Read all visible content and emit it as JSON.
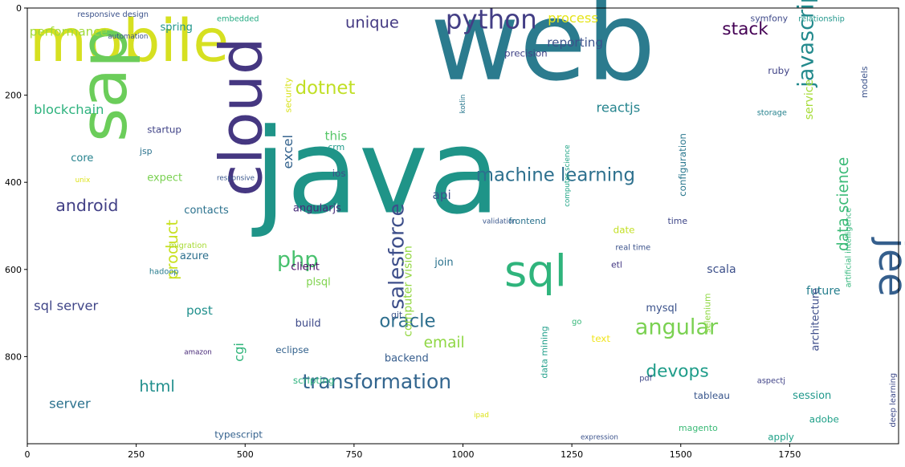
{
  "chart_data": {
    "type": "wordcloud",
    "xlim": [
      0,
      2000
    ],
    "ylim": [
      1000,
      0
    ],
    "x_ticks": [
      0,
      250,
      500,
      750,
      1000,
      1250,
      1500,
      1750
    ],
    "y_ticks": [
      0,
      200,
      400,
      600,
      800
    ],
    "grid": false,
    "colormap": "viridis",
    "words": [
      {
        "text": "web",
        "x": 925,
        "y": 95,
        "size": 250,
        "color": "#2b7b8e"
      },
      {
        "text": "java",
        "x": 520,
        "y": 395,
        "size": 270,
        "color": "#1f9488"
      },
      {
        "text": "mobile",
        "x": 5,
        "y": 85,
        "size": 135,
        "color": "#d6e021"
      },
      {
        "text": "sap",
        "x": 185,
        "y": 175,
        "size": 150,
        "color": "#6bcd5a",
        "rotate": -90
      },
      {
        "text": "cloud",
        "x": 500,
        "y": 250,
        "size": 135,
        "color": "#453781",
        "rotate": -90
      },
      {
        "text": "sql",
        "x": 1095,
        "y": 610,
        "size": 100,
        "color": "#2fb47c"
      },
      {
        "text": "jee",
        "x": 1980,
        "y": 595,
        "size": 90,
        "color": "#355f8d",
        "rotate": 90
      },
      {
        "text": "python",
        "x": 960,
        "y": 30,
        "size": 60,
        "color": "#433e85"
      },
      {
        "text": "javascript",
        "x": 1790,
        "y": 60,
        "size": 50,
        "color": "#238a8d",
        "rotate": -90
      },
      {
        "text": "machine learning",
        "x": 1030,
        "y": 385,
        "size": 42,
        "color": "#2d708e"
      },
      {
        "text": "oracle",
        "x": 808,
        "y": 720,
        "size": 42,
        "color": "#2e6f8e"
      },
      {
        "text": "angular",
        "x": 1395,
        "y": 735,
        "size": 50,
        "color": "#7ad151"
      },
      {
        "text": "transformation",
        "x": 631,
        "y": 860,
        "size": 46,
        "color": "#32658e"
      },
      {
        "text": "devops",
        "x": 1420,
        "y": 835,
        "size": 40,
        "color": "#1e9c89"
      },
      {
        "text": "php",
        "x": 573,
        "y": 580,
        "size": 50,
        "color": "#48c16e"
      },
      {
        "text": "salesforce",
        "x": 850,
        "y": 570,
        "size": 48,
        "color": "#3d4e8a",
        "rotate": -90
      },
      {
        "text": "stack",
        "x": 1595,
        "y": 50,
        "size": 40,
        "color": "#440154"
      },
      {
        "text": "dotnet",
        "x": 615,
        "y": 185,
        "size": 42,
        "color": "#c0df25"
      },
      {
        "text": "excel",
        "x": 600,
        "y": 330,
        "size": 30,
        "color": "#33628d",
        "rotate": -90
      },
      {
        "text": "android",
        "x": 65,
        "y": 455,
        "size": 38,
        "color": "#424086"
      },
      {
        "text": "data science",
        "x": 1875,
        "y": 450,
        "size": 34,
        "color": "#3aba76",
        "rotate": -90
      },
      {
        "text": "unique",
        "x": 730,
        "y": 35,
        "size": 36,
        "color": "#443a83"
      },
      {
        "text": "blockchain",
        "x": 15,
        "y": 235,
        "size": 30,
        "color": "#2db27d"
      },
      {
        "text": "performance",
        "x": 5,
        "y": 55,
        "size": 28,
        "color": "#a0da39"
      },
      {
        "text": "product",
        "x": 335,
        "y": 555,
        "size": 36,
        "color": "#c8e020",
        "rotate": -90
      },
      {
        "text": "computer vision",
        "x": 875,
        "y": 650,
        "size": 26,
        "color": "#93d741",
        "rotate": -90
      },
      {
        "text": "html",
        "x": 257,
        "y": 870,
        "size": 36,
        "color": "#218f8d"
      },
      {
        "text": "email",
        "x": 910,
        "y": 770,
        "size": 34,
        "color": "#8fd744"
      },
      {
        "text": "process",
        "x": 1195,
        "y": 25,
        "size": 30,
        "color": "#e5e419"
      },
      {
        "text": "reporting",
        "x": 1193,
        "y": 80,
        "size": 28,
        "color": "#3b528b"
      },
      {
        "text": "this",
        "x": 683,
        "y": 295,
        "size": 28,
        "color": "#56c667"
      },
      {
        "text": "api",
        "x": 930,
        "y": 430,
        "size": 28,
        "color": "#3b528b"
      },
      {
        "text": "reactjs",
        "x": 1306,
        "y": 230,
        "size": 30,
        "color": "#25848e"
      },
      {
        "text": "sql server",
        "x": 15,
        "y": 685,
        "size": 30,
        "color": "#404688"
      },
      {
        "text": "server",
        "x": 50,
        "y": 910,
        "size": 30,
        "color": "#2c728e"
      },
      {
        "text": "angularjs",
        "x": 610,
        "y": 460,
        "size": 24,
        "color": "#472c7a"
      },
      {
        "text": "cgi",
        "x": 488,
        "y": 790,
        "size": 30,
        "color": "#31b57b",
        "rotate": -90
      },
      {
        "text": "post",
        "x": 365,
        "y": 695,
        "size": 28,
        "color": "#21908d"
      },
      {
        "text": "build",
        "x": 615,
        "y": 725,
        "size": 24,
        "color": "#3e4a89"
      },
      {
        "text": "backend",
        "x": 820,
        "y": 805,
        "size": 24,
        "color": "#365d8d"
      },
      {
        "text": "client",
        "x": 605,
        "y": 595,
        "size": 24,
        "color": "#471063"
      },
      {
        "text": "join",
        "x": 935,
        "y": 585,
        "size": 24,
        "color": "#2c738e"
      },
      {
        "text": "scala",
        "x": 1560,
        "y": 600,
        "size": 26,
        "color": "#3c4f8a"
      },
      {
        "text": "future",
        "x": 1788,
        "y": 650,
        "size": 26,
        "color": "#277f8e"
      },
      {
        "text": "session",
        "x": 1757,
        "y": 890,
        "size": 24,
        "color": "#1f988b"
      },
      {
        "text": "architecture",
        "x": 1810,
        "y": 715,
        "size": 24,
        "color": "#3d4d8a",
        "rotate": -90
      },
      {
        "text": "deep learning",
        "x": 1987,
        "y": 900,
        "size": 18,
        "color": "#3e4a89",
        "rotate": -90
      },
      {
        "text": "service",
        "x": 1795,
        "y": 210,
        "size": 26,
        "color": "#a5db36",
        "rotate": -90
      },
      {
        "text": "models",
        "x": 1923,
        "y": 170,
        "size": 20,
        "color": "#3b528b",
        "rotate": -90
      },
      {
        "text": "artificial intelligence",
        "x": 1885,
        "y": 550,
        "size": 18,
        "color": "#32b67a",
        "rotate": -90
      },
      {
        "text": "relationship",
        "x": 1770,
        "y": 25,
        "size": 18,
        "color": "#1f968b"
      },
      {
        "text": "symfony",
        "x": 1660,
        "y": 25,
        "size": 20,
        "color": "#3e4989"
      },
      {
        "text": "ruby",
        "x": 1700,
        "y": 145,
        "size": 22,
        "color": "#404387"
      },
      {
        "text": "storage",
        "x": 1675,
        "y": 240,
        "size": 18,
        "color": "#26828e"
      },
      {
        "text": "configuration",
        "x": 1505,
        "y": 360,
        "size": 22,
        "color": "#2a778e",
        "rotate": -90
      },
      {
        "text": "precision",
        "x": 1095,
        "y": 105,
        "size": 22,
        "color": "#414487"
      },
      {
        "text": "kotlin",
        "x": 1000,
        "y": 220,
        "size": 16,
        "color": "#2a788e",
        "rotate": -90
      },
      {
        "text": "computer science",
        "x": 1240,
        "y": 385,
        "size": 16,
        "color": "#20a486",
        "rotate": -90
      },
      {
        "text": "validation",
        "x": 1045,
        "y": 490,
        "size": 16,
        "color": "#39568c"
      },
      {
        "text": "frontend",
        "x": 1105,
        "y": 490,
        "size": 20,
        "color": "#2c738e"
      },
      {
        "text": "date",
        "x": 1345,
        "y": 510,
        "size": 22,
        "color": "#c2df23"
      },
      {
        "text": "time",
        "x": 1470,
        "y": 490,
        "size": 20,
        "color": "#3f4788"
      },
      {
        "text": "real time",
        "x": 1350,
        "y": 550,
        "size": 18,
        "color": "#3b528b"
      },
      {
        "text": "etl",
        "x": 1340,
        "y": 590,
        "size": 20,
        "color": "#443983"
      },
      {
        "text": "selenium",
        "x": 1562,
        "y": 700,
        "size": 20,
        "color": "#8fd744",
        "rotate": -90
      },
      {
        "text": "mysql",
        "x": 1420,
        "y": 690,
        "size": 24,
        "color": "#3b528b"
      },
      {
        "text": "data mining",
        "x": 1188,
        "y": 790,
        "size": 20,
        "color": "#1f9e89",
        "rotate": -90
      },
      {
        "text": "text",
        "x": 1295,
        "y": 760,
        "size": 22,
        "color": "#f1e51d"
      },
      {
        "text": "go",
        "x": 1250,
        "y": 720,
        "size": 18,
        "color": "#35b779"
      },
      {
        "text": "git",
        "x": 835,
        "y": 705,
        "size": 20,
        "color": "#3b528b"
      },
      {
        "text": "pdf",
        "x": 1405,
        "y": 850,
        "size": 18,
        "color": "#3f4788"
      },
      {
        "text": "aspectj",
        "x": 1675,
        "y": 855,
        "size": 18,
        "color": "#404387"
      },
      {
        "text": "tableau",
        "x": 1530,
        "y": 890,
        "size": 22,
        "color": "#39568c"
      },
      {
        "text": "adobe",
        "x": 1795,
        "y": 945,
        "size": 22,
        "color": "#1fa088"
      },
      {
        "text": "apply",
        "x": 1700,
        "y": 985,
        "size": 22,
        "color": "#1fa188"
      },
      {
        "text": "magento",
        "x": 1495,
        "y": 965,
        "size": 20,
        "color": "#3aba76"
      },
      {
        "text": "expression",
        "x": 1270,
        "y": 985,
        "size": 16,
        "color": "#3b528b"
      },
      {
        "text": "ipad",
        "x": 1025,
        "y": 935,
        "size": 16,
        "color": "#dde318"
      },
      {
        "text": "scripting",
        "x": 610,
        "y": 855,
        "size": 22,
        "color": "#2db27d"
      },
      {
        "text": "typescript",
        "x": 430,
        "y": 980,
        "size": 22,
        "color": "#34618d"
      },
      {
        "text": "eclipse",
        "x": 570,
        "y": 785,
        "size": 22,
        "color": "#33628d"
      },
      {
        "text": "amazon",
        "x": 360,
        "y": 790,
        "size": 16,
        "color": "#472878"
      },
      {
        "text": "hadoop",
        "x": 280,
        "y": 605,
        "size": 18,
        "color": "#287c8e"
      },
      {
        "text": "migration",
        "x": 325,
        "y": 545,
        "size": 18,
        "color": "#a8db34"
      },
      {
        "text": "azure",
        "x": 350,
        "y": 570,
        "size": 24,
        "color": "#2d708e"
      },
      {
        "text": "contacts",
        "x": 360,
        "y": 465,
        "size": 24,
        "color": "#2c728e"
      },
      {
        "text": "plsql",
        "x": 640,
        "y": 630,
        "size": 24,
        "color": "#7fd34e"
      },
      {
        "text": "ios",
        "x": 700,
        "y": 380,
        "size": 22,
        "color": "#3d4e8a"
      },
      {
        "text": "crm",
        "x": 690,
        "y": 320,
        "size": 20,
        "color": "#1f9a8a"
      },
      {
        "text": "responsive",
        "x": 435,
        "y": 390,
        "size": 16,
        "color": "#39568c"
      },
      {
        "text": "expect",
        "x": 275,
        "y": 390,
        "size": 24,
        "color": "#7ad151"
      },
      {
        "text": "jsp",
        "x": 258,
        "y": 330,
        "size": 20,
        "color": "#2c738e"
      },
      {
        "text": "startup",
        "x": 275,
        "y": 280,
        "size": 22,
        "color": "#404387"
      },
      {
        "text": "core",
        "x": 100,
        "y": 345,
        "size": 24,
        "color": "#26828e"
      },
      {
        "text": "unix",
        "x": 110,
        "y": 395,
        "size": 16,
        "color": "#dde318"
      },
      {
        "text": "security",
        "x": 600,
        "y": 200,
        "size": 20,
        "color": "#d8e219",
        "rotate": -90
      },
      {
        "text": "spring",
        "x": 305,
        "y": 45,
        "size": 24,
        "color": "#1f968b"
      },
      {
        "text": "embedded",
        "x": 435,
        "y": 25,
        "size": 18,
        "color": "#25ab82"
      },
      {
        "text": "responsive design",
        "x": 115,
        "y": 15,
        "size": 18,
        "color": "#3b528b"
      },
      {
        "text": "automation",
        "x": 185,
        "y": 65,
        "size": 16,
        "color": "#3b528b"
      }
    ]
  }
}
